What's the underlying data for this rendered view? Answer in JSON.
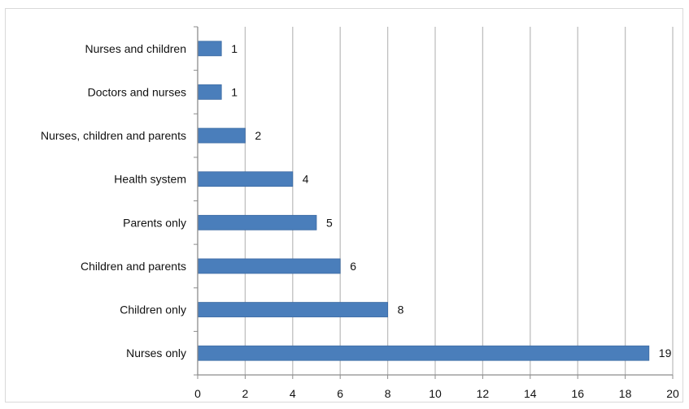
{
  "chart_data": {
    "type": "bar",
    "orientation": "horizontal",
    "categories": [
      "Nurses and children",
      "Doctors and nurses",
      "Nurses, children and parents",
      "Health system",
      "Parents only",
      "Children and parents",
      "Children only",
      "Nurses only"
    ],
    "values": [
      1,
      1,
      2,
      4,
      5,
      6,
      8,
      19
    ],
    "data_labels": [
      "1",
      "1",
      "2",
      "4",
      "5",
      "6",
      "8",
      "19"
    ],
    "xlim": [
      0,
      20
    ],
    "x_ticks": [
      "0",
      "2",
      "4",
      "6",
      "8",
      "10",
      "12",
      "14",
      "16",
      "18",
      "20"
    ],
    "title": "",
    "xlabel": "",
    "ylabel": "",
    "grid": "vertical",
    "legend": "none",
    "colors": {
      "bar": "#4a7ebb",
      "bar_stroke": "#3c6aa3",
      "grid": "#bfbfbf",
      "axis": "#8c8c8c"
    }
  }
}
